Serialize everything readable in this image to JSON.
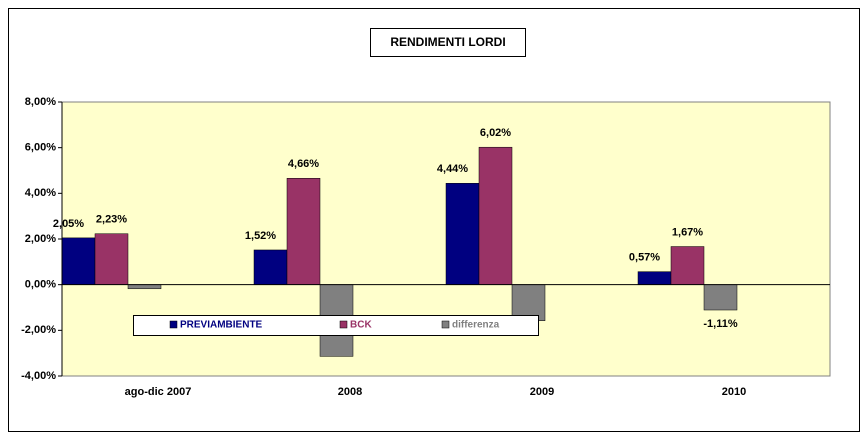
{
  "chart_data": {
    "type": "bar",
    "title": "RENDIMENTI LORDI",
    "categories": [
      "ago-dic 2007",
      "2008",
      "2009",
      "2010"
    ],
    "series": [
      {
        "name": "PREVIAMBIENTE",
        "color": "#000080",
        "values": [
          2.05,
          1.52,
          4.44,
          0.57
        ],
        "value_labels": [
          "2,05%",
          "1,52%",
          "4,44%",
          "0,57%"
        ]
      },
      {
        "name": "BCK",
        "color": "#993366",
        "values": [
          2.23,
          4.66,
          6.02,
          1.67
        ],
        "value_labels": [
          "2,23%",
          "4,66%",
          "6,02%",
          "1,67%"
        ]
      },
      {
        "name": "differenza",
        "color": "#808080",
        "values": [
          -0.18,
          -3.14,
          -1.58,
          -1.11
        ],
        "value_labels": [
          null,
          null,
          null,
          "-1,11%"
        ]
      }
    ],
    "ylim": [
      -4,
      8
    ],
    "yticks": [
      {
        "value": -4,
        "label": "-4,00%"
      },
      {
        "value": -2,
        "label": "-2,00%"
      },
      {
        "value": 0,
        "label": "0,00%"
      },
      {
        "value": 2,
        "label": "2,00%"
      },
      {
        "value": 4,
        "label": "4,00%"
      },
      {
        "value": 6,
        "label": "6,00%"
      },
      {
        "value": 8,
        "label": "8,00%"
      }
    ],
    "legend": "bottom-left"
  }
}
